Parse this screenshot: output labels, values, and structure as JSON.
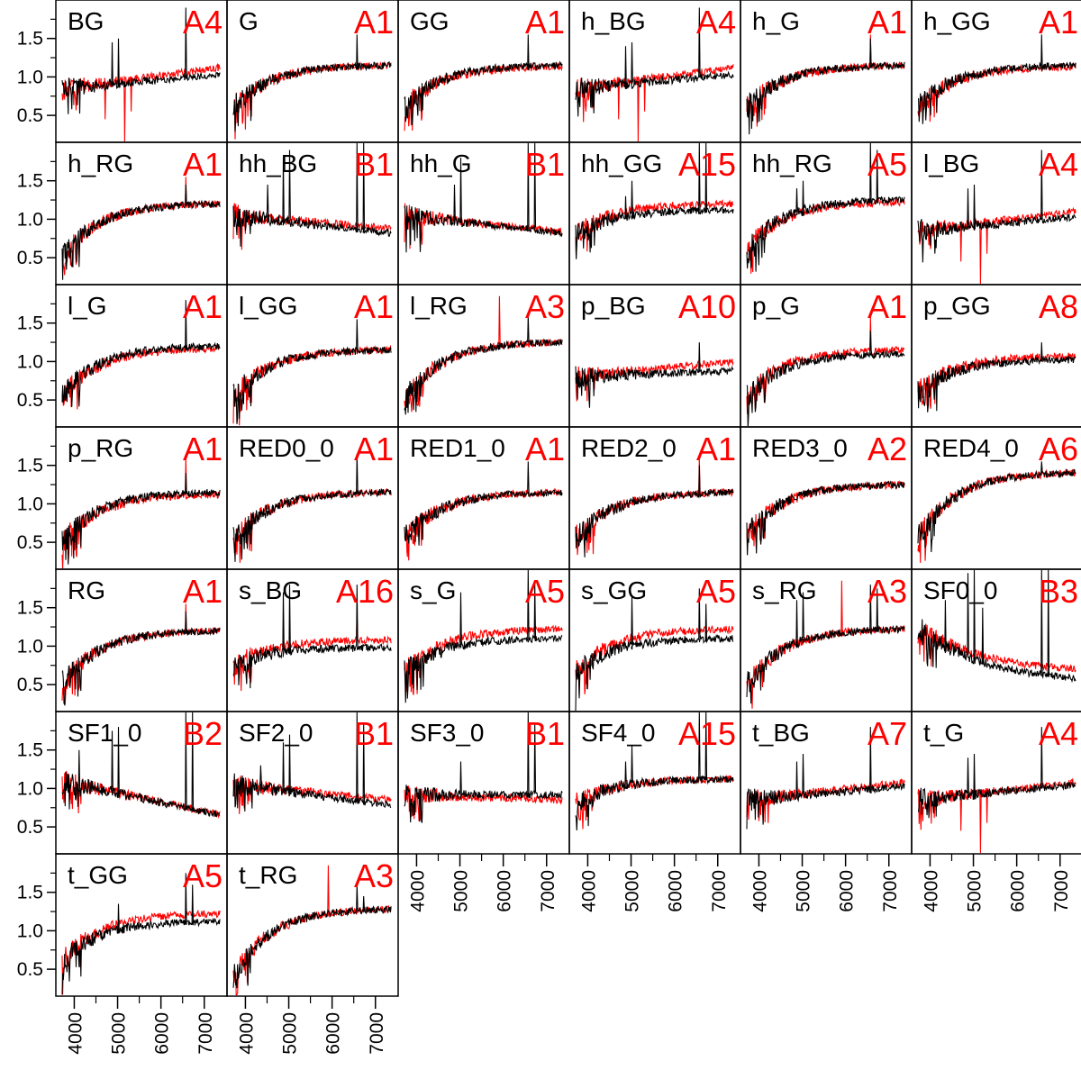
{
  "chart_data": {
    "type": "line",
    "colors": {
      "black_series": "#000000",
      "red_series": "#ff0000",
      "frame": "#000000"
    },
    "grid": false,
    "layout": {
      "columns": 6,
      "rows": 7
    },
    "ylim": [
      0.15,
      2.0
    ],
    "xlim": [
      3700,
      7400
    ],
    "yticks": [
      0.5,
      1.0,
      1.5
    ],
    "ytick_labels": [
      "0.5",
      "1.0",
      "1.5"
    ],
    "xticks": [
      4000,
      5000,
      6000,
      7000
    ],
    "xtick_labels": [
      "4000",
      "5000",
      "6000",
      "7000"
    ],
    "panels": [
      {
        "name": "BG",
        "code": "A4",
        "shape": "flat",
        "start": 0.85,
        "end": 1.03,
        "red_end": 1.12,
        "spikes": [
          [
            6563,
            1.9
          ],
          [
            4861,
            1.45
          ],
          [
            5007,
            1.5
          ]
        ],
        "red_spikes": [
          [
            5150,
            0.15
          ],
          [
            4700,
            0.45
          ],
          [
            5300,
            0.55
          ]
        ]
      },
      {
        "name": "G",
        "code": "A1",
        "shape": "rise",
        "start": 0.6,
        "end": 1.15,
        "red_end": 1.15,
        "spikes": [
          [
            6563,
            1.55
          ]
        ],
        "red_spikes": []
      },
      {
        "name": "GG",
        "code": "A1",
        "shape": "rise",
        "start": 0.6,
        "end": 1.15,
        "red_end": 1.13,
        "spikes": [
          [
            6563,
            1.55
          ]
        ],
        "red_spikes": []
      },
      {
        "name": "h_BG",
        "code": "A4",
        "shape": "flat",
        "start": 0.85,
        "end": 1.03,
        "red_end": 1.12,
        "spikes": [
          [
            6563,
            1.9
          ],
          [
            4861,
            1.4
          ],
          [
            5007,
            1.45
          ]
        ],
        "red_spikes": [
          [
            5150,
            0.15
          ],
          [
            4700,
            0.45
          ],
          [
            5300,
            0.55
          ]
        ]
      },
      {
        "name": "h_G",
        "code": "A1",
        "shape": "rise",
        "start": 0.6,
        "end": 1.15,
        "red_end": 1.15,
        "spikes": [
          [
            6563,
            1.5
          ]
        ],
        "red_spikes": [
          [
            6563,
            1.55
          ]
        ]
      },
      {
        "name": "h_GG",
        "code": "A1",
        "shape": "rise",
        "start": 0.6,
        "end": 1.15,
        "red_end": 1.13,
        "spikes": [
          [
            6563,
            1.55
          ]
        ],
        "red_spikes": []
      },
      {
        "name": "h_RG",
        "code": "A1",
        "shape": "rise",
        "start": 0.5,
        "end": 1.2,
        "red_end": 1.2,
        "spikes": [
          [
            6563,
            1.45
          ]
        ],
        "red_spikes": [
          [
            6563,
            1.55
          ]
        ]
      },
      {
        "name": "hh_BG",
        "code": "B1",
        "shape": "fall",
        "start": 1.05,
        "end": 0.82,
        "red_end": 0.88,
        "spikes": [
          [
            6563,
            2.0
          ],
          [
            6716,
            2.0
          ],
          [
            4861,
            1.8
          ],
          [
            5007,
            1.9
          ],
          [
            4500,
            1.45
          ]
        ],
        "red_spikes": []
      },
      {
        "name": "hh_G",
        "code": "B1",
        "shape": "fall",
        "start": 1.05,
        "end": 0.82,
        "red_end": 0.84,
        "spikes": [
          [
            6563,
            2.0
          ],
          [
            6716,
            2.0
          ],
          [
            5007,
            1.8
          ],
          [
            4861,
            1.45
          ]
        ],
        "red_spikes": []
      },
      {
        "name": "hh_GG",
        "code": "A15",
        "shape": "rise",
        "start": 0.8,
        "end": 1.12,
        "red_end": 1.2,
        "spikes": [
          [
            6563,
            2.0
          ],
          [
            6716,
            2.0
          ],
          [
            5007,
            1.5
          ],
          [
            4861,
            1.3
          ]
        ],
        "red_spikes": []
      },
      {
        "name": "hh_RG",
        "code": "A5",
        "shape": "rise",
        "start": 0.6,
        "end": 1.25,
        "red_end": 1.22,
        "spikes": [
          [
            6563,
            2.0
          ],
          [
            6716,
            1.9
          ],
          [
            5007,
            1.5
          ],
          [
            4861,
            1.4
          ]
        ],
        "red_spikes": []
      },
      {
        "name": "l_BG",
        "code": "A4",
        "shape": "flat",
        "start": 0.85,
        "end": 1.03,
        "red_end": 1.1,
        "spikes": [
          [
            6563,
            1.9
          ],
          [
            4861,
            1.4
          ],
          [
            5007,
            1.45
          ]
        ],
        "red_spikes": [
          [
            5150,
            0.15
          ],
          [
            4700,
            0.45
          ],
          [
            5300,
            0.55
          ]
        ]
      },
      {
        "name": "l_G",
        "code": "A1",
        "shape": "rise",
        "start": 0.55,
        "end": 1.2,
        "red_end": 1.17,
        "spikes": [
          [
            6563,
            1.8
          ]
        ],
        "red_spikes": []
      },
      {
        "name": "l_GG",
        "code": "A1",
        "shape": "rise",
        "start": 0.55,
        "end": 1.15,
        "red_end": 1.15,
        "spikes": [
          [
            6563,
            1.55
          ]
        ],
        "red_spikes": []
      },
      {
        "name": "l_RG",
        "code": "A3",
        "shape": "rise",
        "start": 0.5,
        "end": 1.25,
        "red_end": 1.25,
        "spikes": [
          [
            6563,
            1.6
          ]
        ],
        "red_spikes": [
          [
            5900,
            1.85
          ]
        ]
      },
      {
        "name": "p_BG",
        "code": "A10",
        "shape": "flat",
        "start": 0.8,
        "end": 0.88,
        "red_end": 1.0,
        "spikes": [
          [
            6563,
            1.25
          ]
        ],
        "red_spikes": []
      },
      {
        "name": "p_G",
        "code": "A1",
        "shape": "rise",
        "start": 0.55,
        "end": 1.1,
        "red_end": 1.15,
        "spikes": [
          [
            6563,
            1.4
          ]
        ],
        "red_spikes": [
          [
            6563,
            1.6
          ]
        ]
      },
      {
        "name": "p_GG",
        "code": "A8",
        "shape": "rise",
        "start": 0.6,
        "end": 1.02,
        "red_end": 1.07,
        "spikes": [
          [
            6563,
            1.25
          ]
        ],
        "red_spikes": []
      },
      {
        "name": "p_RG",
        "code": "A1",
        "shape": "rise",
        "start": 0.5,
        "end": 1.15,
        "red_end": 1.12,
        "spikes": [
          [
            6563,
            1.4
          ]
        ],
        "red_spikes": [
          [
            6563,
            1.6
          ]
        ]
      },
      {
        "name": "RED0_0",
        "code": "A1",
        "shape": "rise",
        "start": 0.55,
        "end": 1.15,
        "red_end": 1.15,
        "spikes": [
          [
            6563,
            1.65
          ]
        ],
        "red_spikes": []
      },
      {
        "name": "RED1_0",
        "code": "A1",
        "shape": "rise",
        "start": 0.55,
        "end": 1.15,
        "red_end": 1.15,
        "spikes": [
          [
            6563,
            1.55
          ]
        ],
        "red_spikes": []
      },
      {
        "name": "RED2_0",
        "code": "A1",
        "shape": "rise",
        "start": 0.55,
        "end": 1.15,
        "red_end": 1.15,
        "spikes": [
          [
            6563,
            1.5
          ]
        ],
        "red_spikes": [
          [
            6563,
            1.6
          ]
        ]
      },
      {
        "name": "RED3_0",
        "code": "A2",
        "shape": "rise",
        "start": 0.6,
        "end": 1.25,
        "red_end": 1.25,
        "spikes": [],
        "red_spikes": []
      },
      {
        "name": "RED4_0",
        "code": "A6",
        "shape": "rise",
        "start": 0.55,
        "end": 1.4,
        "red_end": 1.4,
        "spikes": [
          [
            6563,
            1.55
          ]
        ],
        "red_spikes": []
      },
      {
        "name": "RG",
        "code": "A1",
        "shape": "rise",
        "start": 0.5,
        "end": 1.2,
        "red_end": 1.2,
        "spikes": [
          [
            6563,
            1.45
          ]
        ],
        "red_spikes": [
          [
            6563,
            1.55
          ]
        ]
      },
      {
        "name": "s_BG",
        "code": "A16",
        "shape": "rise",
        "start": 0.75,
        "end": 0.98,
        "red_end": 1.08,
        "spikes": [
          [
            6563,
            1.8
          ],
          [
            4861,
            1.7
          ],
          [
            5007,
            1.8
          ]
        ],
        "red_spikes": [
          [
            6563,
            1.45
          ]
        ]
      },
      {
        "name": "s_G",
        "code": "A5",
        "shape": "rise",
        "start": 0.65,
        "end": 1.1,
        "red_end": 1.22,
        "spikes": [
          [
            6563,
            2.0
          ],
          [
            6716,
            1.8
          ],
          [
            5007,
            1.7
          ]
        ],
        "red_spikes": []
      },
      {
        "name": "s_GG",
        "code": "A5",
        "shape": "rise",
        "start": 0.65,
        "end": 1.1,
        "red_end": 1.22,
        "spikes": [
          [
            6563,
            1.75
          ],
          [
            6716,
            1.55
          ],
          [
            5007,
            1.65
          ]
        ],
        "red_spikes": []
      },
      {
        "name": "s_RG",
        "code": "A3",
        "shape": "rise",
        "start": 0.5,
        "end": 1.22,
        "red_end": 1.22,
        "spikes": [
          [
            6563,
            1.8
          ],
          [
            6716,
            1.75
          ],
          [
            4861,
            1.6
          ],
          [
            5007,
            1.7
          ]
        ],
        "red_spikes": [
          [
            5900,
            1.85
          ]
        ]
      },
      {
        "name": "SF0_0",
        "code": "B3",
        "shape": "steepfall",
        "start": 1.25,
        "end": 0.52,
        "red_end": 0.65,
        "spikes": [
          [
            6563,
            2.0
          ],
          [
            6716,
            2.0
          ],
          [
            4861,
            1.95
          ],
          [
            5007,
            2.0
          ],
          [
            4340,
            1.6
          ],
          [
            5200,
            1.5
          ]
        ],
        "red_spikes": []
      },
      {
        "name": "SF1_0",
        "code": "B2",
        "shape": "fall",
        "start": 1.1,
        "end": 0.65,
        "red_end": 0.66,
        "spikes": [
          [
            6563,
            2.0
          ],
          [
            6716,
            2.0
          ],
          [
            4861,
            1.75
          ],
          [
            5007,
            1.8
          ],
          [
            4100,
            1.5
          ]
        ],
        "red_spikes": []
      },
      {
        "name": "SF2_0",
        "code": "B1",
        "shape": "fall",
        "start": 1.05,
        "end": 0.78,
        "red_end": 0.85,
        "spikes": [
          [
            6563,
            2.0
          ],
          [
            6716,
            1.85
          ],
          [
            4861,
            1.6
          ],
          [
            5007,
            1.7
          ],
          [
            4340,
            1.3
          ]
        ],
        "red_spikes": []
      },
      {
        "name": "SF3_0",
        "code": "B1",
        "shape": "flat",
        "start": 0.92,
        "end": 0.92,
        "red_end": 0.85,
        "spikes": [
          [
            6563,
            2.0
          ],
          [
            6716,
            1.85
          ],
          [
            5007,
            1.35
          ]
        ],
        "red_spikes": []
      },
      {
        "name": "SF4_0",
        "code": "A15",
        "shape": "rise",
        "start": 0.8,
        "end": 1.12,
        "red_end": 1.12,
        "spikes": [
          [
            6563,
            2.0
          ],
          [
            6716,
            2.0
          ],
          [
            5007,
            1.55
          ],
          [
            4861,
            1.35
          ]
        ],
        "red_spikes": []
      },
      {
        "name": "t_BG",
        "code": "A7",
        "shape": "flat",
        "start": 0.85,
        "end": 1.03,
        "red_end": 1.08,
        "spikes": [
          [
            6563,
            1.8
          ],
          [
            4861,
            1.35
          ],
          [
            5007,
            1.45
          ]
        ],
        "red_spikes": [
          [
            4200,
            0.55
          ]
        ]
      },
      {
        "name": "t_G",
        "code": "A4",
        "shape": "flat",
        "start": 0.85,
        "end": 1.05,
        "red_end": 1.08,
        "spikes": [
          [
            6563,
            1.8
          ],
          [
            4861,
            1.4
          ],
          [
            5007,
            1.45
          ]
        ],
        "red_spikes": [
          [
            5150,
            0.15
          ],
          [
            4700,
            0.45
          ],
          [
            5300,
            0.55
          ]
        ]
      },
      {
        "name": "t_GG",
        "code": "A5",
        "shape": "rise",
        "start": 0.6,
        "end": 1.12,
        "red_end": 1.22,
        "spikes": [
          [
            6563,
            1.75
          ],
          [
            6716,
            1.6
          ],
          [
            5007,
            1.35
          ]
        ],
        "red_spikes": []
      },
      {
        "name": "t_RG",
        "code": "A3",
        "shape": "rise",
        "start": 0.4,
        "end": 1.28,
        "red_end": 1.28,
        "spikes": [
          [
            6563,
            1.6
          ],
          [
            6716,
            1.45
          ]
        ],
        "red_spikes": [
          [
            5900,
            1.85
          ]
        ]
      }
    ]
  }
}
